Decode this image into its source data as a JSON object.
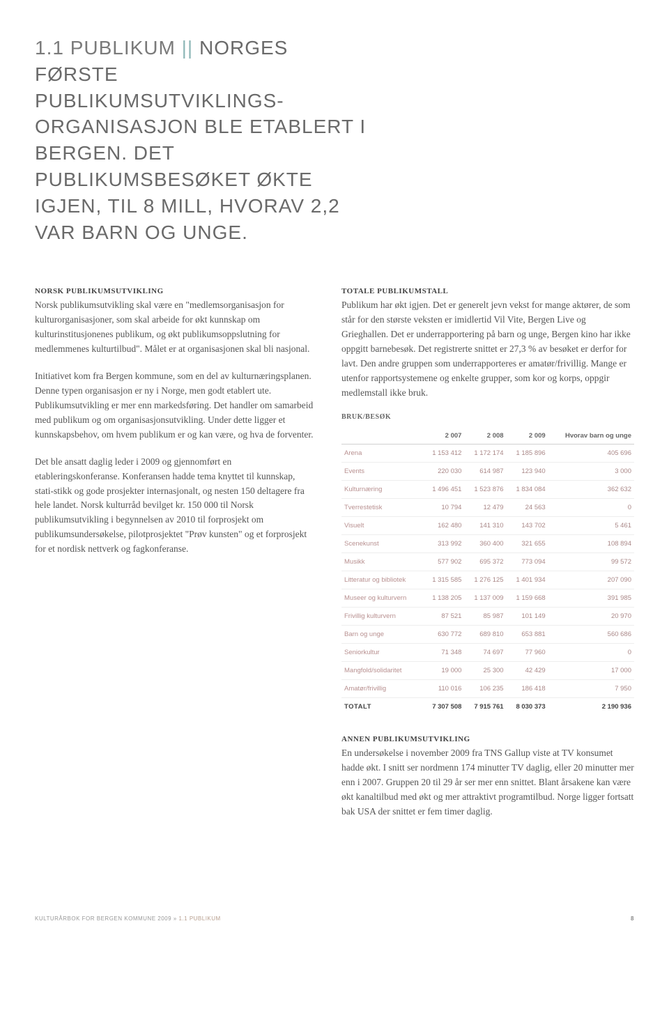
{
  "headline": {
    "lead": "1.1 PUBLIKUM",
    "bars": " || ",
    "rest": "NORGES FØRSTE PUBLIKUMSUTVIKLINGS-ORGANISASJON BLE ETABLERT I BERGEN. DET PUBLIKUMSBESØKET ØKTE IGJEN, TIL 8 MILL, HVORAV 2,2 VAR BARN OG UNGE."
  },
  "left": {
    "h1": "NORSK PUBLIKUMSUTVIKLING",
    "p1": "Norsk publikumsutvikling skal være en \"medlemsorganisasjon for kulturorganisasjoner, som skal arbeide for økt kunnskap om kulturinstitusjonenes publikum, og økt publikumsoppslutning for medlemmenes kulturtilbud\". Målet er at organisasjonen skal bli nasjonal.",
    "p2": "Initiativet kom fra Bergen kommune, som en del av kulturnæringsplanen. Denne typen organisasjon er ny i Norge, men godt etablert ute. Publikumsutvikling er mer enn markedsføring. Det handler om samarbeid med publikum og om organisasjonsutvikling. Under dette ligger et kunnskapsbehov, om hvem publikum er og kan være, og hva de forventer.",
    "p3": "Det ble ansatt daglig leder i 2009 og gjennomført en etableringskonferanse. Konferansen hadde tema knyttet til kunnskap, stati-stikk og gode prosjekter internasjonalt, og nesten 150 deltagere fra hele landet. Norsk kulturråd bevilget kr. 150 000 til Norsk publikumsutvikling i begynnelsen av 2010 til forprosjekt om publikumsundersøkelse, pilotprosjektet \"Prøv kunsten\" og et forprosjekt for et nordisk nettverk og fagkonferanse."
  },
  "right": {
    "h1": "TOTALE PUBLIKUMSTALL",
    "p1": "Publikum har økt igjen. Det er generelt jevn vekst for mange aktører, de som står for den største veksten er imidlertid Vil Vite, Bergen Live og Grieghallen. Det er underrapportering på barn og unge, Bergen kino har ikke oppgitt barnebesøk. Det registrerte snittet er 27,3 % av besøket er derfor for lavt. Den andre gruppen som underrapporteres er amatør/frivillig. Mange er utenfor rapportsystemene og enkelte grupper, som kor og korps, oppgir medlemstall ikke bruk.",
    "h2": "ANNEN PUBLIKUMSUTVIKLING",
    "p2": "En undersøkelse i november 2009 fra TNS Gallup viste at TV konsumet hadde økt. I snitt ser nordmenn 174 minutter TV daglig, eller 20 minutter mer enn i 2007. Gruppen 20 til 29 år ser mer enn snittet. Blant årsakene kan være økt kanaltilbud med økt og mer attraktivt programtilbud. Norge ligger fortsatt bak USA der snittet er fem timer daglig."
  },
  "table": {
    "caption": "BRUK/BESØK",
    "columns": [
      "",
      "2 007",
      "2 008",
      "2 009",
      "Hvorav barn og unge"
    ],
    "rows": [
      [
        "Arena",
        "1 153 412",
        "1 172 174",
        "1 185 896",
        "405 696"
      ],
      [
        "Events",
        "220 030",
        "614 987",
        "123 940",
        "3 000"
      ],
      [
        "Kulturnæring",
        "1 496 451",
        "1 523 876",
        "1 834 084",
        "362 632"
      ],
      [
        "Tverrestetisk",
        "10 794",
        "12 479",
        "24 563",
        "0"
      ],
      [
        "Visuelt",
        "162 480",
        "141 310",
        "143 702",
        "5 461"
      ],
      [
        "Scenekunst",
        "313 992",
        "360 400",
        "321 655",
        "108 894"
      ],
      [
        "Musikk",
        "577 902",
        "695 372",
        "773 094",
        "99 572"
      ],
      [
        "Litteratur og bibliotek",
        "1 315 585",
        "1 276 125",
        "1 401 934",
        "207 090"
      ],
      [
        "Museer og kulturvern",
        "1 138 205",
        "1 137 009",
        "1 159 668",
        "391 985"
      ],
      [
        "Frivillig kulturvern",
        "87 521",
        "85 987",
        "101 149",
        "20 970"
      ],
      [
        "Barn og unge",
        "630 772",
        "689 810",
        "653 881",
        "560 686"
      ],
      [
        "Seniorkultur",
        "71 348",
        "74 697",
        "77 960",
        "0"
      ],
      [
        "Mangfold/solidaritet",
        "19 000",
        "25 300",
        "42 429",
        "17 000"
      ],
      [
        "Amatør/frivillig",
        "110 016",
        "106 235",
        "186 418",
        "7 950"
      ]
    ],
    "total": [
      "TOTALT",
      "7 307 508",
      "7 915 761",
      "8 030 373",
      "2 190 936"
    ]
  },
  "footer": {
    "book": "KULTURÅRBOK FOR BERGEN KOMMUNE 2009",
    "sep": " » ",
    "crumb": "1.1 PUBLIKUM",
    "page": "8"
  },
  "colors": {
    "body_text": "#555555",
    "headline": "#6a6a6a",
    "bars": "#8fb8b8",
    "table_row_text": "#b89090",
    "table_header": "#666666",
    "border_light": "#eeeeee",
    "border_head": "#d0d0d0",
    "total_border": "#888888",
    "background": "#ffffff"
  }
}
